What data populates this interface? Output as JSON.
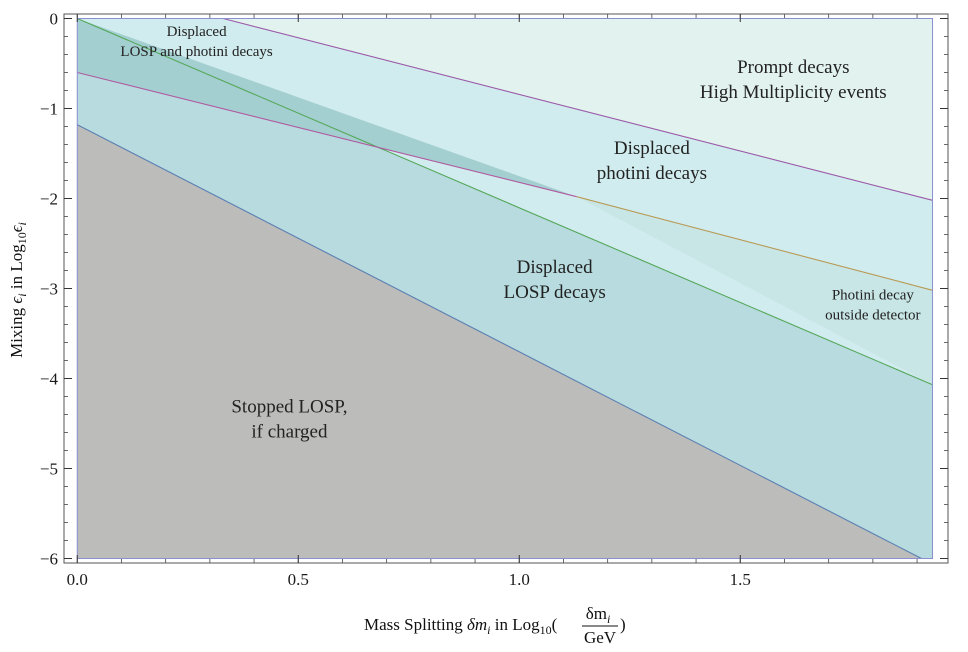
{
  "chart_data": {
    "type": "area",
    "title": "",
    "xlabel": "Mass Splitting  δmᵢ in Log₁₀(δmᵢ/GeV)",
    "xlabel_parts": {
      "prefix": "Mass Splitting ",
      "symbol": "δm",
      "sub_i": "i",
      "mid": " in Log",
      "sub_10": "10",
      "open_paren": "(",
      "numerator": "δm",
      "numerator_sub": "i",
      "denominator": "GeV",
      "close_paren": ")"
    },
    "ylabel": "Mixing ϵᵢ in Log₁₀ϵᵢ",
    "ylabel_parts": {
      "prefix": "Mixing ",
      "symbol": "ϵ",
      "sub_i": "i",
      "mid": " in Log",
      "sub_10": "10",
      "symbol2": "ϵ",
      "sub_i2": "i"
    },
    "xlim": [
      -0.03,
      1.97
    ],
    "ylim": [
      -6.05,
      0.05
    ],
    "x_ticks": [
      0.0,
      0.5,
      1.0,
      1.5
    ],
    "x_tick_labels": [
      "0.0",
      "0.5",
      "1.0",
      "1.5"
    ],
    "y_ticks": [
      0,
      -1,
      -2,
      -3,
      -4,
      -5,
      -6
    ],
    "y_tick_labels": [
      "0",
      "−1",
      "−2",
      "−3",
      "−4",
      "−5",
      "−6"
    ],
    "x_minor_step": 0.1,
    "y_minor_step": 0.2,
    "plot_xmax": 1.935,
    "boundaries": [
      {
        "name": "stopped-losp-boundary",
        "color": "#5b7fb2",
        "points": [
          [
            0.0,
            -1.18
          ],
          [
            1.91,
            -6.0
          ]
        ]
      },
      {
        "name": "losp-decay-outside-boundary",
        "color": "#55a85c",
        "points": [
          [
            0.0,
            0.0
          ],
          [
            1.935,
            -4.07
          ]
        ]
      },
      {
        "name": "photini-displaced-lower-boundary",
        "color": "#b05aa0",
        "points": [
          [
            0.0,
            -0.6
          ],
          [
            1.13,
            -1.98
          ]
        ]
      },
      {
        "name": "photini-outside-detector-boundary",
        "color": "#b89a55",
        "points": [
          [
            1.13,
            -1.98
          ],
          [
            1.935,
            -3.02
          ]
        ]
      },
      {
        "name": "prompt-boundary",
        "color": "#9b5aa8",
        "points": [
          [
            0.33,
            0.0
          ],
          [
            1.935,
            -2.02
          ]
        ]
      }
    ],
    "regions": [
      {
        "name": "prompt-region",
        "color": "#e2f2ef",
        "polygon": [
          [
            0.0,
            0.0
          ],
          [
            1.935,
            0.0
          ],
          [
            1.935,
            -6.0
          ],
          [
            0.0,
            -6.0
          ]
        ]
      },
      {
        "name": "displaced-photini-region",
        "color": "#d1ecee",
        "polygon": [
          [
            0.33,
            0.0
          ],
          [
            1.935,
            -2.02
          ],
          [
            1.935,
            -6.0
          ],
          [
            0.0,
            -6.0
          ],
          [
            0.0,
            0.0
          ]
        ]
      },
      {
        "name": "displaced-losp-region",
        "color": "#b7dbde",
        "polygon": [
          [
            0.0,
            0.0
          ],
          [
            1.935,
            -4.07
          ],
          [
            1.935,
            -6.0
          ],
          [
            0.0,
            -6.0
          ]
        ]
      },
      {
        "name": "photini-outside-region",
        "color": "#c9e6e6",
        "polygon": [
          [
            1.13,
            -1.98
          ],
          [
            1.935,
            -3.02
          ],
          [
            1.935,
            -4.07
          ]
        ]
      },
      {
        "name": "displaced-losp-photini-region",
        "color": "#a4cfd0",
        "polygon": [
          [
            0.0,
            0.0
          ],
          [
            1.13,
            -1.98
          ],
          [
            0.0,
            -0.6
          ]
        ]
      },
      {
        "name": "stopped-losp-region",
        "color": "#bcbdba",
        "polygon": [
          [
            0.0,
            -1.18
          ],
          [
            1.91,
            -6.0
          ],
          [
            0.0,
            -6.0
          ]
        ]
      }
    ],
    "annotations": [
      {
        "name": "label-displaced-losp-photini",
        "lines": [
          "Displaced",
          "LOSP and photini decays"
        ],
        "x": 0.27,
        "y": -0.25,
        "size": "small"
      },
      {
        "name": "label-prompt-decays",
        "lines": [
          "Prompt decays",
          "High Multiplicity events"
        ],
        "x": 1.62,
        "y": -0.68,
        "size": "normal"
      },
      {
        "name": "label-displaced-photini",
        "lines": [
          "Displaced",
          "photini decays"
        ],
        "x": 1.3,
        "y": -1.58,
        "size": "normal"
      },
      {
        "name": "label-displaced-losp",
        "lines": [
          "Displaced",
          "LOSP decays"
        ],
        "x": 1.08,
        "y": -2.9,
        "size": "normal"
      },
      {
        "name": "label-photini-outside",
        "lines": [
          "Photini decay",
          "outside detector"
        ],
        "x": 1.8,
        "y": -3.18,
        "size": "small"
      },
      {
        "name": "label-stopped-losp",
        "lines": [
          "Stopped LOSP,",
          "if charged"
        ],
        "x": 0.48,
        "y": -4.45,
        "size": "normal"
      }
    ]
  }
}
